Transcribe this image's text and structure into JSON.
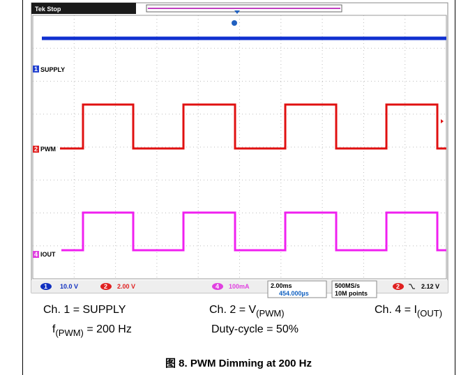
{
  "scope": {
    "status": "Tek Stop",
    "channels": [
      {
        "marker": "1",
        "label": "SUPPLY"
      },
      {
        "marker": "2",
        "label": "PWM"
      },
      {
        "marker": "4",
        "label": "IOUT"
      }
    ],
    "readout": {
      "ch1_scale": "10.0 V",
      "ch2_scale": "2.00 V",
      "ch4_scale": "100mA",
      "timebase": "2.00ms",
      "delay": "454.000µs",
      "sample_rate": "500MS/s",
      "record": "10M points",
      "trigger_level": "2.12 V"
    }
  },
  "caption": {
    "ch1": "Ch. 1 = SUPPLY",
    "ch2": {
      "main": "Ch. 2 = V",
      "sub": "(PWM)"
    },
    "ch4": {
      "main": "Ch. 4 = I",
      "sub": "(OUT)"
    },
    "freq": {
      "pre": "f",
      "sub": "(PWM)",
      "post": " = 200 Hz"
    },
    "duty": "Duty-cycle = 50%",
    "title": "图 8. PWM Dimming at 200 Hz"
  }
}
